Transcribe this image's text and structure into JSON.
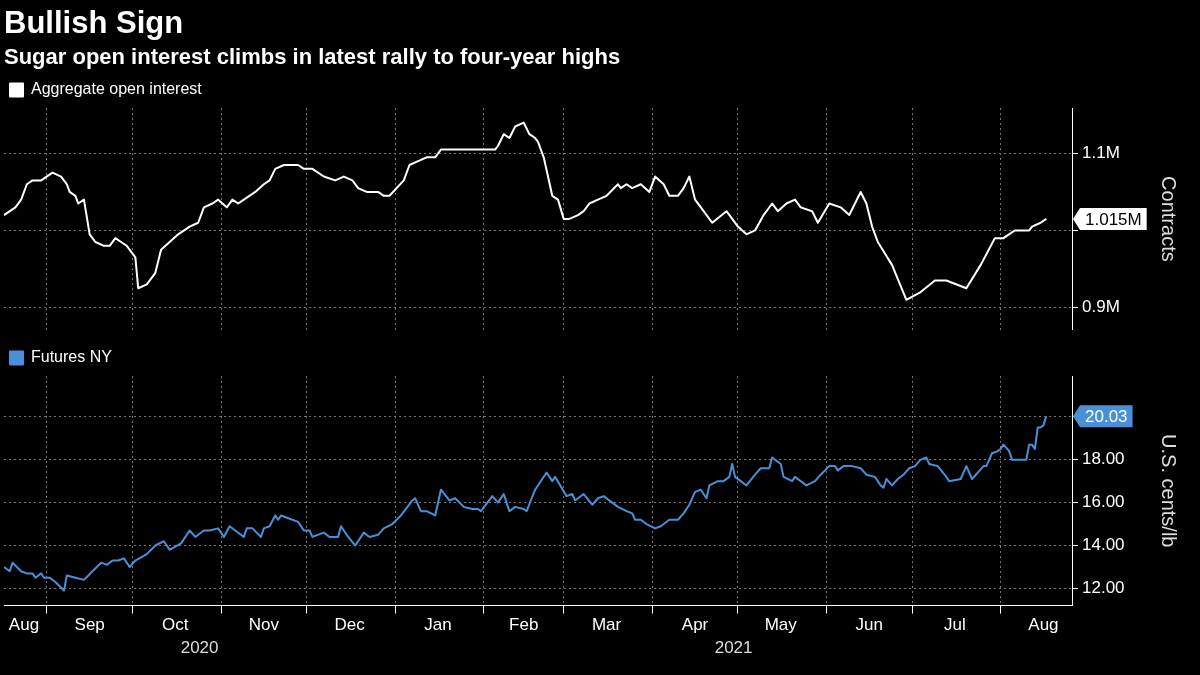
{
  "chart_data": [
    {
      "type": "line",
      "title": "Bullish Sign",
      "subtitle": "Sugar open interest climbs in latest rally to four-year highs",
      "ylabel": "Contracts",
      "legend": "top left",
      "grid": true,
      "marker": "none",
      "tick_labels": "y",
      "xlim": [
        "2020-08-17",
        "2021-08-26"
      ],
      "xticks": [
        {
          "value": "2020-09-01",
          "label": null
        },
        {
          "value": "2020-10-01",
          "label": null
        },
        {
          "value": "2020-11-01",
          "label": null
        },
        {
          "value": "2020-12-01",
          "label": null
        },
        {
          "value": "2021-01-01",
          "label": null
        },
        {
          "value": "2021-02-01",
          "label": null
        },
        {
          "value": "2021-03-01",
          "label": null
        },
        {
          "value": "2021-04-01",
          "label": null
        },
        {
          "value": "2021-05-01",
          "label": null
        },
        {
          "value": "2021-06-01",
          "label": null
        },
        {
          "value": "2021-07-01",
          "label": null
        },
        {
          "value": "2021-08-01",
          "label": null
        }
      ],
      "ylim": [
        871000,
        1159000
      ],
      "yticks": [
        {
          "value": 900000,
          "label": "0.9M"
        },
        {
          "value": 1000000,
          "label": null
        },
        {
          "value": 1100000,
          "label": "1.1M"
        }
      ],
      "annotations": [
        {
          "text": "1.015M",
          "x": "2021-08-17",
          "y": 1015000
        }
      ],
      "x": [
        "2020-08-17",
        "2020-08-21",
        "2020-08-23",
        "2020-08-25",
        "2020-08-27",
        "2020-08-30",
        "2020-09-03",
        "2020-09-06",
        "2020-09-08",
        "2020-09-09",
        "2020-09-11",
        "2020-09-12",
        "2020-09-14",
        "2020-09-16",
        "2020-09-18",
        "2020-09-21",
        "2020-09-23",
        "2020-09-25",
        "2020-09-27",
        "2020-09-29",
        "2020-10-02",
        "2020-10-03",
        "2020-10-06",
        "2020-10-09",
        "2020-10-11",
        "2020-10-14",
        "2020-10-17",
        "2020-10-21",
        "2020-10-24",
        "2020-10-26",
        "2020-10-29",
        "2020-10-31",
        "2020-11-03",
        "2020-11-05",
        "2020-11-07",
        "2020-11-09",
        "2020-11-13",
        "2020-11-16",
        "2020-11-18",
        "2020-11-20",
        "2020-11-23",
        "2020-11-28",
        "2020-11-30",
        "2020-12-03",
        "2020-12-07",
        "2020-12-11",
        "2020-12-14",
        "2020-12-17",
        "2020-12-19",
        "2020-12-22",
        "2020-12-26",
        "2020-12-28",
        "2020-12-30",
        "2021-01-04",
        "2021-01-06",
        "2021-01-09",
        "2021-01-12",
        "2021-01-15",
        "2021-01-17",
        "2021-01-20",
        "2021-01-23",
        "2021-01-29",
        "2021-02-05",
        "2021-02-06",
        "2021-02-08",
        "2021-02-10",
        "2021-02-12",
        "2021-02-15",
        "2021-02-17",
        "2021-02-19",
        "2021-02-20",
        "2021-02-22",
        "2021-02-25",
        "2021-02-27",
        "2021-03-01",
        "2021-03-03",
        "2021-03-06",
        "2021-03-08",
        "2021-03-10",
        "2021-03-13",
        "2021-03-16",
        "2021-03-20",
        "2021-03-21",
        "2021-03-23",
        "2021-03-25",
        "2021-03-28",
        "2021-03-31",
        "2021-04-02",
        "2021-04-05",
        "2021-04-07",
        "2021-04-10",
        "2021-04-12",
        "2021-04-14",
        "2021-04-16",
        "2021-04-19",
        "2021-04-22",
        "2021-04-27",
        "2021-05-01",
        "2021-05-04",
        "2021-05-07",
        "2021-05-10",
        "2021-05-13",
        "2021-05-15",
        "2021-05-18",
        "2021-05-21",
        "2021-05-23",
        "2021-05-27",
        "2021-05-29",
        "2021-06-02",
        "2021-06-06",
        "2021-06-09",
        "2021-06-13",
        "2021-06-15",
        "2021-06-17",
        "2021-06-19",
        "2021-06-24",
        "2021-06-29",
        "2021-07-04",
        "2021-07-09",
        "2021-07-13",
        "2021-07-20",
        "2021-07-25",
        "2021-07-30",
        "2021-08-02",
        "2021-08-06",
        "2021-08-11",
        "2021-08-12",
        "2021-08-15",
        "2021-08-17"
      ],
      "series": [
        {
          "name": "Aggregate open interest",
          "color": "#ffffff",
          "values": [
            1020000,
            1030000,
            1040000,
            1060000,
            1065000,
            1065000,
            1075000,
            1070000,
            1060000,
            1050000,
            1045000,
            1035000,
            1040000,
            995000,
            985000,
            980000,
            980000,
            990000,
            985000,
            980000,
            965000,
            925000,
            930000,
            945000,
            975000,
            985000,
            995000,
            1005000,
            1010000,
            1030000,
            1035000,
            1040000,
            1030000,
            1040000,
            1035000,
            1040000,
            1050000,
            1060000,
            1065000,
            1080000,
            1085000,
            1085000,
            1080000,
            1080000,
            1070000,
            1065000,
            1070000,
            1065000,
            1055000,
            1050000,
            1050000,
            1045000,
            1045000,
            1065000,
            1085000,
            1090000,
            1095000,
            1095000,
            1105000,
            1105000,
            1105000,
            1105000,
            1105000,
            1110000,
            1125000,
            1120000,
            1135000,
            1140000,
            1125000,
            1120000,
            1115000,
            1095000,
            1045000,
            1040000,
            1015000,
            1015000,
            1020000,
            1025000,
            1035000,
            1040000,
            1045000,
            1060000,
            1055000,
            1060000,
            1055000,
            1060000,
            1050000,
            1070000,
            1060000,
            1045000,
            1045000,
            1055000,
            1070000,
            1040000,
            1025000,
            1010000,
            1025000,
            1005000,
            995000,
            1000000,
            1020000,
            1035000,
            1025000,
            1035000,
            1040000,
            1030000,
            1025000,
            1010000,
            1035000,
            1030000,
            1020000,
            1050000,
            1035000,
            1005000,
            985000,
            955000,
            910000,
            920000,
            935000,
            935000,
            925000,
            955000,
            990000,
            990000,
            1000000,
            1000000,
            1005000,
            1010000,
            1015000
          ]
        }
      ]
    },
    {
      "type": "line",
      "ylabel": "U.S. cents/lb",
      "legend": "top left",
      "grid": true,
      "marker": "none",
      "xlim": [
        "2020-08-17",
        "2021-08-26"
      ],
      "xticks": [
        {
          "value": "2020-08-24",
          "label": "Aug"
        },
        {
          "value": "2020-09-01",
          "label": null
        },
        {
          "value": "2020-09-16",
          "label": "Sep"
        },
        {
          "value": "2020-10-01",
          "label": null
        },
        {
          "value": "2020-10-16",
          "label": "Oct"
        },
        {
          "value": "2020-11-01",
          "label": null
        },
        {
          "value": "2020-11-16",
          "label": "Nov"
        },
        {
          "value": "2020-12-01",
          "label": null
        },
        {
          "value": "2020-12-16",
          "label": "Dec"
        },
        {
          "value": "2021-01-01",
          "label": null
        },
        {
          "value": "2021-01-16",
          "label": "Jan"
        },
        {
          "value": "2021-02-01",
          "label": null
        },
        {
          "value": "2021-02-15",
          "label": "Feb"
        },
        {
          "value": "2021-03-01",
          "label": null
        },
        {
          "value": "2021-03-16",
          "label": "Mar"
        },
        {
          "value": "2021-04-01",
          "label": null
        },
        {
          "value": "2021-04-16",
          "label": "Apr"
        },
        {
          "value": "2021-05-01",
          "label": null
        },
        {
          "value": "2021-05-16",
          "label": "May"
        },
        {
          "value": "2021-06-01",
          "label": null
        },
        {
          "value": "2021-06-16",
          "label": "Jun"
        },
        {
          "value": "2021-07-01",
          "label": null
        },
        {
          "value": "2021-07-16",
          "label": "Jul"
        },
        {
          "value": "2021-08-01",
          "label": null
        },
        {
          "value": "2021-08-16",
          "label": "Aug"
        }
      ],
      "ylim": [
        11.2,
        21.9
      ],
      "yticks": [
        {
          "value": 12,
          "label": "12.00"
        },
        {
          "value": 14,
          "label": "14.00"
        },
        {
          "value": 16,
          "label": "16.00"
        },
        {
          "value": 18,
          "label": "18.00"
        },
        {
          "value": 20,
          "label": null
        }
      ],
      "annotations": [
        {
          "text": "20.03",
          "x": "2021-08-17",
          "y": 20.03
        },
        "2020",
        "2021"
      ],
      "x": [
        "2020-08-17",
        "2020-08-19",
        "2020-08-20",
        "2020-08-23",
        "2020-08-25",
        "2020-08-27",
        "2020-08-28",
        "2020-08-30",
        "2020-08-31",
        "2020-09-02",
        "2020-09-04",
        "2020-09-07",
        "2020-09-08",
        "2020-09-11",
        "2020-09-14",
        "2020-09-17",
        "2020-09-20",
        "2020-09-22",
        "2020-09-24",
        "2020-09-26",
        "2020-09-28",
        "2020-09-30",
        "2020-10-02",
        "2020-10-06",
        "2020-10-09",
        "2020-10-12",
        "2020-10-14",
        "2020-10-18",
        "2020-10-21",
        "2020-10-23",
        "2020-10-26",
        "2020-10-28",
        "2020-10-31",
        "2020-11-02",
        "2020-11-04",
        "2020-11-09",
        "2020-11-10",
        "2020-11-12",
        "2020-11-15",
        "2020-11-16",
        "2020-11-18",
        "2020-11-20",
        "2020-11-21",
        "2020-11-22",
        "2020-11-26",
        "2020-11-28",
        "2020-11-30",
        "2020-12-02",
        "2020-12-03",
        "2020-12-07",
        "2020-12-09",
        "2020-12-12",
        "2020-12-13",
        "2020-12-15",
        "2020-12-18",
        "2020-12-21",
        "2020-12-23",
        "2020-12-26",
        "2020-12-28",
        "2020-12-31",
        "2021-01-03",
        "2021-01-07",
        "2021-01-08",
        "2021-01-10",
        "2021-01-12",
        "2021-01-15",
        "2021-01-17",
        "2021-01-20",
        "2021-01-22",
        "2021-01-25",
        "2021-01-28",
        "2021-01-30",
        "2021-01-31",
        "2021-02-04",
        "2021-02-06",
        "2021-02-08",
        "2021-02-10",
        "2021-02-12",
        "2021-02-15",
        "2021-02-16",
        "2021-02-19",
        "2021-02-23",
        "2021-02-25",
        "2021-02-26",
        "2021-03-02",
        "2021-03-04",
        "2021-03-05",
        "2021-03-08",
        "2021-03-11",
        "2021-03-13",
        "2021-03-15",
        "2021-03-17",
        "2021-03-18",
        "2021-03-20",
        "2021-03-23",
        "2021-03-25",
        "2021-03-26",
        "2021-03-28",
        "2021-03-30",
        "2021-04-02",
        "2021-04-04",
        "2021-04-07",
        "2021-04-10",
        "2021-04-12",
        "2021-04-14",
        "2021-04-16",
        "2021-04-18",
        "2021-04-20",
        "2021-04-21",
        "2021-04-24",
        "2021-04-26",
        "2021-04-28",
        "2021-04-29",
        "2021-04-30",
        "2021-05-02",
        "2021-05-04",
        "2021-05-07",
        "2021-05-09",
        "2021-05-12",
        "2021-05-13",
        "2021-05-16",
        "2021-05-17",
        "2021-05-20",
        "2021-05-21",
        "2021-05-23",
        "2021-05-25",
        "2021-05-28",
        "2021-05-30",
        "2021-06-02",
        "2021-06-04",
        "2021-06-05",
        "2021-06-07",
        "2021-06-10",
        "2021-06-13",
        "2021-06-15",
        "2021-06-18",
        "2021-06-20",
        "2021-06-21",
        "2021-06-22",
        "2021-06-24",
        "2021-06-26",
        "2021-06-28",
        "2021-06-30",
        "2021-07-02",
        "2021-07-04",
        "2021-07-06",
        "2021-07-07",
        "2021-07-10",
        "2021-07-13",
        "2021-07-14",
        "2021-07-18",
        "2021-07-19",
        "2021-07-20",
        "2021-07-22",
        "2021-07-24",
        "2021-07-26",
        "2021-07-27",
        "2021-07-29",
        "2021-07-31",
        "2021-08-01",
        "2021-08-02",
        "2021-08-04",
        "2021-08-05",
        "2021-08-08",
        "2021-08-10",
        "2021-08-11",
        "2021-08-12",
        "2021-08-13",
        "2021-08-14",
        "2021-08-15",
        "2021-08-16",
        "2021-08-17"
      ],
      "series": [
        {
          "name": "Futures NY",
          "color": "#4a90d9",
          "values": [
            13.0,
            12.8,
            13.2,
            12.8,
            12.7,
            12.7,
            12.5,
            12.7,
            12.5,
            12.5,
            12.3,
            11.9,
            12.6,
            12.5,
            12.4,
            12.8,
            13.2,
            13.1,
            13.3,
            13.3,
            13.4,
            13.0,
            13.3,
            13.6,
            14.0,
            14.2,
            13.8,
            14.1,
            14.7,
            14.4,
            14.7,
            14.7,
            14.8,
            14.4,
            14.9,
            14.4,
            14.8,
            14.8,
            14.4,
            14.8,
            14.9,
            15.4,
            15.2,
            15.4,
            15.2,
            15.1,
            14.7,
            14.7,
            14.4,
            14.6,
            14.4,
            14.4,
            14.9,
            14.5,
            14.0,
            14.6,
            14.4,
            14.5,
            14.8,
            15.0,
            15.4,
            16.1,
            16.2,
            15.6,
            15.6,
            15.4,
            16.6,
            16.1,
            16.2,
            15.8,
            15.7,
            15.7,
            15.6,
            16.3,
            16.0,
            16.4,
            15.6,
            15.8,
            15.7,
            15.6,
            16.6,
            17.4,
            17.0,
            17.2,
            16.3,
            16.4,
            16.1,
            16.4,
            15.9,
            16.2,
            16.3,
            16.1,
            16.0,
            15.8,
            15.6,
            15.5,
            15.2,
            15.2,
            15.0,
            14.8,
            14.9,
            15.2,
            15.2,
            15.5,
            15.9,
            16.5,
            16.6,
            16.2,
            16.8,
            17.0,
            17.0,
            17.2,
            17.8,
            17.2,
            17.0,
            16.8,
            17.3,
            17.6,
            17.6,
            18.1,
            17.8,
            17.2,
            17.0,
            17.2,
            17.0,
            16.8,
            17.0,
            17.3,
            17.7,
            17.7,
            17.5,
            17.7,
            17.7,
            17.6,
            17.3,
            17.2,
            16.8,
            16.7,
            17.1,
            16.8,
            17.1,
            17.3,
            17.6,
            17.7,
            18.0,
            18.1,
            17.8,
            17.7,
            17.2,
            17.0,
            17.1,
            17.4,
            17.7,
            17.1,
            17.4,
            17.7,
            17.7,
            18.3,
            18.4,
            18.5,
            18.7,
            18.4,
            18.0,
            18.0,
            18.0,
            18.7,
            18.7,
            18.5,
            19.5,
            19.5,
            19.6,
            20.03
          ]
        }
      ]
    }
  ]
}
